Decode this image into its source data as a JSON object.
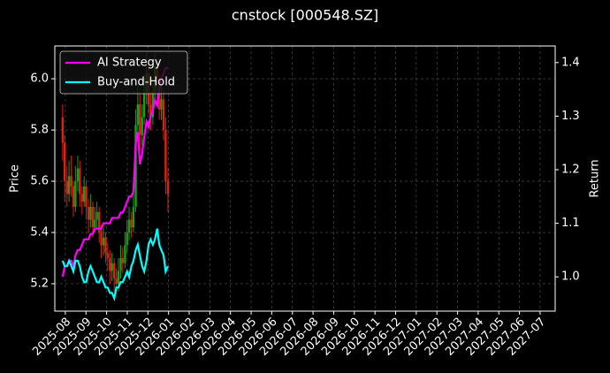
{
  "chart_data": {
    "type": "candlestick",
    "title": "cnstock [000548.SZ]",
    "ylabel": "Price",
    "y2label": "Return",
    "x": [
      -0.13,
      -0.03,
      0.08,
      0.18,
      0.29,
      0.39,
      0.49,
      0.6,
      0.7,
      0.81,
      0.91,
      1.01,
      1.12,
      1.22,
      1.33,
      1.43,
      1.53,
      1.64,
      1.74,
      1.85,
      1.95,
      2.05,
      2.16,
      2.26,
      2.37,
      2.47,
      2.57,
      2.68,
      2.78,
      2.89,
      2.99,
      3.09,
      3.2,
      3.3,
      3.41,
      3.51,
      3.61,
      3.72,
      3.82,
      3.93,
      4.03,
      4.13,
      4.24,
      4.34,
      4.45,
      4.55,
      4.65,
      4.76,
      4.86,
      4.97
    ],
    "open": [
      5.85,
      5.75,
      5.6,
      5.55,
      5.62,
      5.58,
      5.5,
      5.6,
      5.65,
      5.55,
      5.52,
      5.58,
      5.5,
      5.45,
      5.5,
      5.42,
      5.45,
      5.48,
      5.4,
      5.35,
      5.38,
      5.32,
      5.3,
      5.25,
      5.28,
      5.22,
      5.2,
      5.25,
      5.3,
      5.28,
      5.35,
      5.4,
      5.45,
      5.42,
      5.5,
      5.82,
      5.9,
      5.78,
      5.85,
      5.95,
      6.02,
      5.9,
      5.85,
      5.95,
      6.05,
      5.98,
      5.88,
      5.92,
      5.8,
      5.6
    ],
    "high": [
      5.9,
      5.78,
      5.66,
      5.68,
      5.7,
      5.6,
      5.66,
      5.7,
      5.68,
      5.58,
      5.62,
      5.6,
      5.53,
      5.55,
      5.52,
      5.5,
      5.52,
      5.5,
      5.43,
      5.42,
      5.4,
      5.36,
      5.33,
      5.32,
      5.3,
      5.26,
      5.3,
      5.35,
      5.34,
      5.4,
      5.45,
      5.5,
      5.48,
      5.56,
      5.88,
      5.98,
      5.94,
      5.9,
      6.02,
      6.1,
      6.05,
      5.95,
      6.0,
      6.1,
      6.08,
      6.02,
      5.98,
      5.96,
      5.85,
      5.65
    ],
    "low": [
      5.68,
      5.52,
      5.5,
      5.52,
      5.54,
      5.46,
      5.48,
      5.56,
      5.5,
      5.47,
      5.5,
      5.45,
      5.4,
      5.42,
      5.38,
      5.4,
      5.41,
      5.36,
      5.3,
      5.31,
      5.28,
      5.25,
      5.2,
      5.21,
      5.17,
      5.16,
      5.17,
      5.22,
      5.24,
      5.26,
      5.32,
      5.37,
      5.38,
      5.4,
      5.48,
      5.78,
      5.72,
      5.74,
      5.82,
      5.9,
      5.86,
      5.8,
      5.82,
      5.9,
      5.92,
      5.84,
      5.84,
      5.76,
      5.55,
      5.48
    ],
    "close": [
      5.75,
      5.6,
      5.55,
      5.62,
      5.58,
      5.5,
      5.6,
      5.65,
      5.55,
      5.52,
      5.58,
      5.5,
      5.45,
      5.5,
      5.42,
      5.45,
      5.48,
      5.4,
      5.35,
      5.38,
      5.32,
      5.3,
      5.25,
      5.28,
      5.22,
      5.2,
      5.25,
      5.3,
      5.28,
      5.35,
      5.4,
      5.45,
      5.42,
      5.5,
      5.82,
      5.9,
      5.78,
      5.85,
      5.95,
      6.02,
      5.9,
      5.85,
      5.95,
      6.05,
      5.98,
      5.88,
      5.92,
      5.8,
      5.6,
      5.55
    ],
    "up_color": "#1a9e1a",
    "down_color": "#e02010",
    "series": [
      {
        "name": "AI Strategy",
        "color": "#ff00ff",
        "axis": "y2",
        "values": [
          1.0,
          1.02,
          1.02,
          1.03,
          1.03,
          1.02,
          1.04,
          1.05,
          1.05,
          1.06,
          1.07,
          1.07,
          1.07,
          1.08,
          1.08,
          1.09,
          1.09,
          1.09,
          1.09,
          1.1,
          1.1,
          1.1,
          1.1,
          1.11,
          1.11,
          1.11,
          1.11,
          1.12,
          1.12,
          1.13,
          1.14,
          1.15,
          1.15,
          1.16,
          1.25,
          1.27,
          1.21,
          1.23,
          1.26,
          1.29,
          1.28,
          1.3,
          1.31,
          1.33,
          1.32,
          1.35,
          1.37,
          1.38,
          1.39,
          1.39
        ]
      },
      {
        "name": "Buy-and-Hold",
        "color": "#00ffff",
        "axis": "y2",
        "values": [
          1.03,
          1.02,
          1.02,
          1.03,
          1.02,
          1.01,
          1.03,
          1.03,
          1.02,
          1.0,
          0.99,
          0.99,
          1.01,
          1.02,
          1.01,
          1.0,
          0.99,
          0.99,
          1.0,
          0.99,
          0.98,
          0.98,
          0.97,
          0.97,
          0.96,
          0.98,
          0.98,
          0.99,
          0.99,
          1.0,
          1.01,
          1.0,
          1.02,
          1.03,
          1.05,
          1.06,
          1.04,
          1.02,
          1.01,
          1.03,
          1.06,
          1.07,
          1.06,
          1.07,
          1.09,
          1.06,
          1.05,
          1.04,
          1.01,
          1.02
        ]
      }
    ],
    "xlim": [
      -0.51,
      23.73
    ],
    "xticks": [
      {
        "value": 0,
        "label": "2025-08"
      },
      {
        "value": 1,
        "label": "2025-09"
      },
      {
        "value": 2,
        "label": "2025-10"
      },
      {
        "value": 3,
        "label": "2025-11"
      },
      {
        "value": 4,
        "label": "2025-12"
      },
      {
        "value": 5,
        "label": "2026-01"
      },
      {
        "value": 6,
        "label": "2026-02"
      },
      {
        "value": 7,
        "label": "2026-03"
      },
      {
        "value": 8,
        "label": "2026-04"
      },
      {
        "value": 9,
        "label": "2026-05"
      },
      {
        "value": 10,
        "label": "2026-06"
      },
      {
        "value": 11,
        "label": "2026-07"
      },
      {
        "value": 12,
        "label": "2026-08"
      },
      {
        "value": 13,
        "label": "2026-09"
      },
      {
        "value": 14,
        "label": "2026-10"
      },
      {
        "value": 15,
        "label": "2026-11"
      },
      {
        "value": 16,
        "label": "2026-12"
      },
      {
        "value": 17,
        "label": "2027-01"
      },
      {
        "value": 18,
        "label": "2027-02"
      },
      {
        "value": 19,
        "label": "2027-03"
      },
      {
        "value": 20,
        "label": "2027-04"
      },
      {
        "value": 21,
        "label": "2027-05"
      },
      {
        "value": 22,
        "label": "2027-06"
      },
      {
        "value": 23,
        "label": "2027-07"
      }
    ],
    "ylim": [
      5.093,
      6.128
    ],
    "yticks": [
      5.2,
      5.4,
      5.6,
      5.8,
      {
        "value": 6,
        "label": "6.0"
      }
    ],
    "y2lim": [
      0.936,
      1.431
    ],
    "y2ticks": [
      {
        "value": 1,
        "label": "1.0"
      },
      1.1,
      1.2,
      1.3,
      1.4
    ],
    "grid": true,
    "legend": "upper left"
  }
}
